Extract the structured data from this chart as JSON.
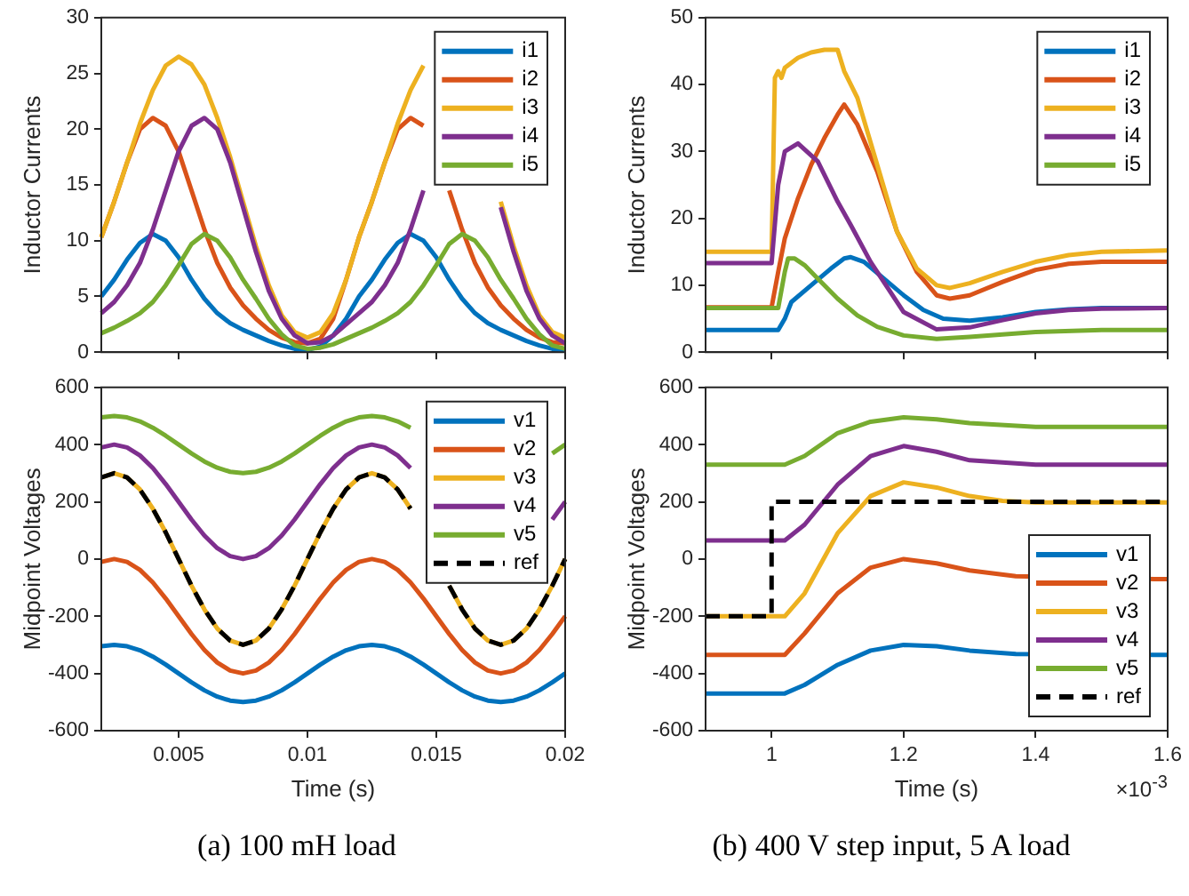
{
  "chart_data": [
    {
      "type": "line",
      "ylabel": "Inductor Currents",
      "xlim": [
        0.002,
        0.02
      ],
      "xticks": [
        0.005,
        0.01,
        0.015,
        0.02
      ],
      "ylim": [
        0,
        30
      ],
      "yticks": [
        0,
        5,
        10,
        15,
        20,
        25,
        30
      ],
      "tick_labels": "y",
      "legend": "top right",
      "x": [
        0.002,
        0.0025,
        0.003,
        0.0035,
        0.004,
        0.0045,
        0.005,
        0.0055,
        0.006,
        0.0065,
        0.007,
        0.0075,
        0.008,
        0.0085,
        0.009,
        0.0095,
        0.01,
        0.0105,
        0.011,
        0.0115,
        0.012,
        0.0125,
        0.013,
        0.0135,
        0.014,
        0.0145,
        0.015,
        0.0155,
        0.016,
        0.0165,
        0.017,
        0.0175,
        0.018,
        0.0185,
        0.019,
        0.0195,
        0.02
      ],
      "series": [
        {
          "name": "i1",
          "color": "#0072bd",
          "values": [
            5,
            6.5,
            8.3,
            9.8,
            10.6,
            10,
            8.5,
            6.5,
            4.8,
            3.5,
            2.6,
            2,
            1.5,
            1,
            0.6,
            0.3,
            0.2,
            0.5,
            1.5,
            3,
            5,
            6.5,
            8.3,
            9.8,
            10.6,
            10,
            8.5,
            6.5,
            4.8,
            3.5,
            2.6,
            2,
            1.5,
            1,
            0.6,
            0.3,
            0.2
          ]
        },
        {
          "name": "i2",
          "color": "#d95319",
          "values": [
            10.3,
            13.5,
            17,
            20,
            21,
            20.3,
            18,
            14.5,
            11,
            8,
            5.8,
            4.2,
            3,
            2,
            1.3,
            0.9,
            0.8,
            1.2,
            3,
            6.5,
            10.3,
            13.5,
            17,
            20,
            21,
            20.3,
            null,
            14.5,
            11,
            8,
            5.8,
            4.2,
            3,
            2,
            1.3,
            0.9,
            0.8
          ]
        },
        {
          "name": "i3",
          "color": "#edb120",
          "values": [
            10.3,
            13.5,
            17,
            20.5,
            23.5,
            25.7,
            26.5,
            25.8,
            24,
            21,
            17.5,
            13.5,
            9.5,
            6,
            3.3,
            1.8,
            1.3,
            1.8,
            3.5,
            6.5,
            10.3,
            13.5,
            17,
            20.5,
            23.5,
            25.7,
            null,
            null,
            null,
            null,
            null,
            13.5,
            9.5,
            6,
            3.3,
            1.8,
            1.3
          ]
        },
        {
          "name": "i4",
          "color": "#7e2f8e",
          "values": [
            3.5,
            4.5,
            6,
            8,
            11,
            14.5,
            18,
            20.3,
            21,
            20,
            17,
            13,
            9,
            5.5,
            3,
            1.5,
            0.8,
            0.9,
            1.5,
            2.5,
            3.5,
            4.5,
            6,
            8,
            11,
            14.5,
            null,
            null,
            null,
            null,
            null,
            13,
            9,
            5.5,
            3,
            1.5,
            0.8
          ]
        },
        {
          "name": "i5",
          "color": "#77ac30",
          "values": [
            1.7,
            2.2,
            2.8,
            3.5,
            4.5,
            6,
            7.8,
            9.7,
            10.6,
            10,
            8.5,
            6.5,
            4.8,
            3,
            1.6,
            0.6,
            0.3,
            0.4,
            0.7,
            1.2,
            1.7,
            2.2,
            2.8,
            3.5,
            4.5,
            6,
            7.8,
            9.7,
            10.6,
            10,
            8.5,
            6.5,
            4.8,
            3,
            1.6,
            0.6,
            0.3
          ]
        }
      ]
    },
    {
      "type": "line",
      "ylabel": "Inductor Currents",
      "xlim": [
        0.9,
        1.6
      ],
      "xticks": [
        1,
        1.2,
        1.4,
        1.6
      ],
      "ylim": [
        0,
        50
      ],
      "yticks": [
        0,
        10,
        20,
        30,
        40,
        50
      ],
      "tick_labels": "y",
      "legend": "top right",
      "series": [
        {
          "name": "i1",
          "color": "#0072bd",
          "x": [
            0.9,
            1.01,
            1.02,
            1.03,
            1.06,
            1.09,
            1.11,
            1.12,
            1.14,
            1.17,
            1.2,
            1.23,
            1.26,
            1.3,
            1.35,
            1.4,
            1.45,
            1.5,
            1.6
          ],
          "values": [
            3.3,
            3.3,
            5,
            7.5,
            10,
            12.5,
            14,
            14.2,
            13.5,
            11,
            8.5,
            6.3,
            5,
            4.7,
            5.2,
            6,
            6.4,
            6.6,
            6.6
          ]
        },
        {
          "name": "i2",
          "color": "#d95319",
          "x": [
            0.9,
            1,
            1.01,
            1.02,
            1.04,
            1.06,
            1.08,
            1.1,
            1.11,
            1.13,
            1.16,
            1.19,
            1.22,
            1.25,
            1.27,
            1.3,
            1.35,
            1.4,
            1.45,
            1.5,
            1.6
          ],
          "values": [
            6.7,
            6.7,
            12,
            17,
            23,
            28,
            32,
            35.5,
            37,
            34,
            27,
            18,
            12,
            8.5,
            8,
            8.5,
            10.5,
            12.3,
            13.2,
            13.5,
            13.5
          ]
        },
        {
          "name": "i3",
          "color": "#edb120",
          "x": [
            0.9,
            1,
            1.005,
            1.01,
            1.015,
            1.02,
            1.04,
            1.06,
            1.08,
            1.1,
            1.11,
            1.13,
            1.16,
            1.19,
            1.22,
            1.25,
            1.27,
            1.3,
            1.35,
            1.4,
            1.45,
            1.5,
            1.6
          ],
          "values": [
            15,
            15,
            41,
            42,
            41,
            42.5,
            44,
            44.8,
            45.2,
            45.2,
            42,
            38,
            28,
            18,
            12.5,
            10,
            9.6,
            10.3,
            12,
            13.5,
            14.5,
            15,
            15.2
          ]
        },
        {
          "name": "i4",
          "color": "#7e2f8e",
          "x": [
            0.9,
            1,
            1.01,
            1.02,
            1.04,
            1.07,
            1.1,
            1.12,
            1.15,
            1.2,
            1.25,
            1.3,
            1.35,
            1.4,
            1.45,
            1.5,
            1.6
          ],
          "values": [
            13.3,
            13.3,
            25,
            30,
            31.2,
            28.5,
            22.5,
            19,
            13.5,
            6,
            3.4,
            3.7,
            4.8,
            5.8,
            6.3,
            6.5,
            6.6
          ]
        },
        {
          "name": "i5",
          "color": "#77ac30",
          "x": [
            0.9,
            1.01,
            1.02,
            1.025,
            1.035,
            1.05,
            1.07,
            1.1,
            1.13,
            1.16,
            1.2,
            1.25,
            1.3,
            1.4,
            1.5,
            1.6
          ],
          "values": [
            6.6,
            6.6,
            12,
            14,
            14,
            13,
            11,
            8,
            5.5,
            3.8,
            2.5,
            2,
            2.3,
            3,
            3.3,
            3.3
          ]
        }
      ]
    },
    {
      "type": "line",
      "ylabel": "Midpoint Voltages",
      "xlabel": "Time (s)",
      "xlim": [
        0.002,
        0.02
      ],
      "xticks": [
        0.005,
        0.01,
        0.015,
        0.02
      ],
      "ylim": [
        -600,
        600
      ],
      "yticks": [
        -600,
        -400,
        -200,
        0,
        200,
        400,
        600
      ],
      "legend": "top right",
      "annotations": [
        "(a) 100 mH load"
      ],
      "x": [
        0.002,
        0.0025,
        0.003,
        0.0035,
        0.004,
        0.0045,
        0.005,
        0.0055,
        0.006,
        0.0065,
        0.007,
        0.0075,
        0.008,
        0.0085,
        0.009,
        0.0095,
        0.01,
        0.0105,
        0.011,
        0.0115,
        0.012,
        0.0125,
        0.013,
        0.0135,
        0.014,
        0.0145,
        0.015,
        0.0155,
        0.016,
        0.0165,
        0.017,
        0.0175,
        0.018,
        0.0185,
        0.019,
        0.0195,
        0.02
      ],
      "series": [
        {
          "name": "v1",
          "color": "#0072bd",
          "values": [
            -305,
            -300,
            -305,
            -319,
            -341,
            -369,
            -400,
            -431,
            -459,
            -481,
            -495,
            -500,
            -495,
            -481,
            -459,
            -431,
            -400,
            -369,
            -341,
            -319,
            -305,
            -300,
            -305,
            -319,
            -341,
            -369,
            -400,
            -431,
            -459,
            -481,
            -495,
            -500,
            -495,
            -481,
            -459,
            -431,
            -400
          ]
        },
        {
          "name": "v2",
          "color": "#d95319",
          "values": [
            -10,
            0,
            -10,
            -38,
            -82,
            -138,
            -200,
            -262,
            -318,
            -362,
            -390,
            -400,
            -390,
            -362,
            -318,
            -262,
            -200,
            -138,
            -82,
            -38,
            -10,
            0,
            -10,
            -38,
            -82,
            -138,
            -200,
            -262,
            -318,
            -362,
            -390,
            -400,
            -390,
            -362,
            -318,
            -262,
            -200
          ]
        },
        {
          "name": "v3",
          "color": "#edb120",
          "values": [
            285,
            300,
            285,
            243,
            176,
            93,
            0,
            -93,
            -176,
            -243,
            -285,
            -300,
            -285,
            -243,
            -176,
            -93,
            0,
            93,
            176,
            243,
            285,
            300,
            285,
            243,
            176,
            null,
            null,
            -93,
            -176,
            -243,
            -285,
            -300,
            -285,
            -243,
            -176,
            -93,
            0
          ]
        },
        {
          "name": "v4",
          "color": "#7e2f8e",
          "values": [
            390,
            400,
            390,
            362,
            318,
            262,
            200,
            138,
            82,
            38,
            10,
            0,
            10,
            38,
            82,
            138,
            200,
            262,
            318,
            362,
            390,
            400,
            390,
            362,
            318,
            null,
            null,
            null,
            null,
            null,
            null,
            null,
            null,
            null,
            null,
            138,
            200
          ]
        },
        {
          "name": "v5",
          "color": "#77ac30",
          "values": [
            495,
            500,
            495,
            481,
            459,
            431,
            400,
            369,
            341,
            319,
            305,
            300,
            305,
            319,
            341,
            369,
            400,
            431,
            459,
            481,
            495,
            500,
            495,
            481,
            459,
            null,
            null,
            null,
            null,
            null,
            null,
            null,
            null,
            null,
            null,
            369,
            400
          ]
        },
        {
          "name": "ref",
          "color": "#000000",
          "line_style": "dashed",
          "values": [
            285,
            300,
            285,
            243,
            176,
            93,
            0,
            -93,
            -176,
            -243,
            -285,
            -300,
            -285,
            -243,
            -176,
            -93,
            0,
            93,
            176,
            243,
            285,
            300,
            285,
            243,
            176,
            null,
            null,
            -93,
            -176,
            -243,
            -285,
            -300,
            -285,
            -243,
            -176,
            -93,
            0
          ]
        }
      ]
    },
    {
      "type": "line",
      "ylabel": "Midpoint Voltages",
      "xlabel": "Time (s)",
      "xlim": [
        0.9,
        1.6
      ],
      "xticks": [
        1,
        1.2,
        1.4,
        1.6
      ],
      "ylim": [
        -600,
        600
      ],
      "yticks": [
        -600,
        -400,
        -200,
        0,
        200,
        400,
        600
      ],
      "legend": "bottom right",
      "annotations": [
        "×10$^{-3}$",
        "(b) 400 V step input, 5 A load"
      ],
      "series": [
        {
          "name": "v1",
          "color": "#0072bd",
          "x": [
            0.9,
            1.02,
            1.05,
            1.1,
            1.15,
            1.2,
            1.25,
            1.3,
            1.37,
            1.58,
            1.6
          ],
          "values": [
            -470,
            -470,
            -440,
            -370,
            -320,
            -300,
            -305,
            -320,
            -332,
            -335,
            -335
          ]
        },
        {
          "name": "v2",
          "color": "#d95319",
          "x": [
            0.9,
            1.02,
            1.05,
            1.1,
            1.15,
            1.2,
            1.25,
            1.3,
            1.37,
            1.58,
            1.6
          ],
          "values": [
            -335,
            -335,
            -260,
            -120,
            -30,
            0,
            -15,
            -40,
            -60,
            -70,
            -70
          ]
        },
        {
          "name": "v3",
          "color": "#edb120",
          "x": [
            0.9,
            1.02,
            1.05,
            1.1,
            1.15,
            1.2,
            1.25,
            1.3,
            1.35,
            1.4,
            1.6
          ],
          "values": [
            -200,
            -200,
            -120,
            90,
            220,
            268,
            250,
            220,
            203,
            198,
            198
          ]
        },
        {
          "name": "v4",
          "color": "#7e2f8e",
          "x": [
            0.9,
            1.02,
            1.05,
            1.1,
            1.15,
            1.2,
            1.25,
            1.3,
            1.4,
            1.6
          ],
          "values": [
            65,
            65,
            120,
            260,
            360,
            395,
            375,
            345,
            330,
            330
          ]
        },
        {
          "name": "v5",
          "color": "#77ac30",
          "x": [
            0.9,
            1.02,
            1.05,
            1.1,
            1.15,
            1.2,
            1.25,
            1.3,
            1.4,
            1.6
          ],
          "values": [
            330,
            330,
            360,
            440,
            480,
            495,
            488,
            475,
            462,
            462
          ]
        },
        {
          "name": "ref",
          "color": "#000000",
          "line_style": "dashed",
          "x": [
            0.9,
            1,
            1,
            1.6
          ],
          "values": [
            -200,
            -200,
            200,
            200
          ]
        }
      ]
    }
  ]
}
